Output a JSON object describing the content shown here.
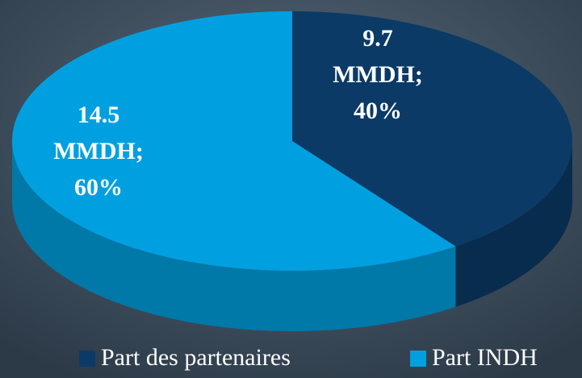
{
  "chart_data": {
    "type": "pie",
    "categories": [
      "Part des partenaires",
      "Part INDH"
    ],
    "values": [
      9.7,
      14.5
    ],
    "value_labels": [
      "9.7 MMDH; 40%",
      "14.5 MMDH; 60%"
    ],
    "colors": [
      "#0b3a66",
      "#00a0e0"
    ],
    "legend": "bottom"
  }
}
